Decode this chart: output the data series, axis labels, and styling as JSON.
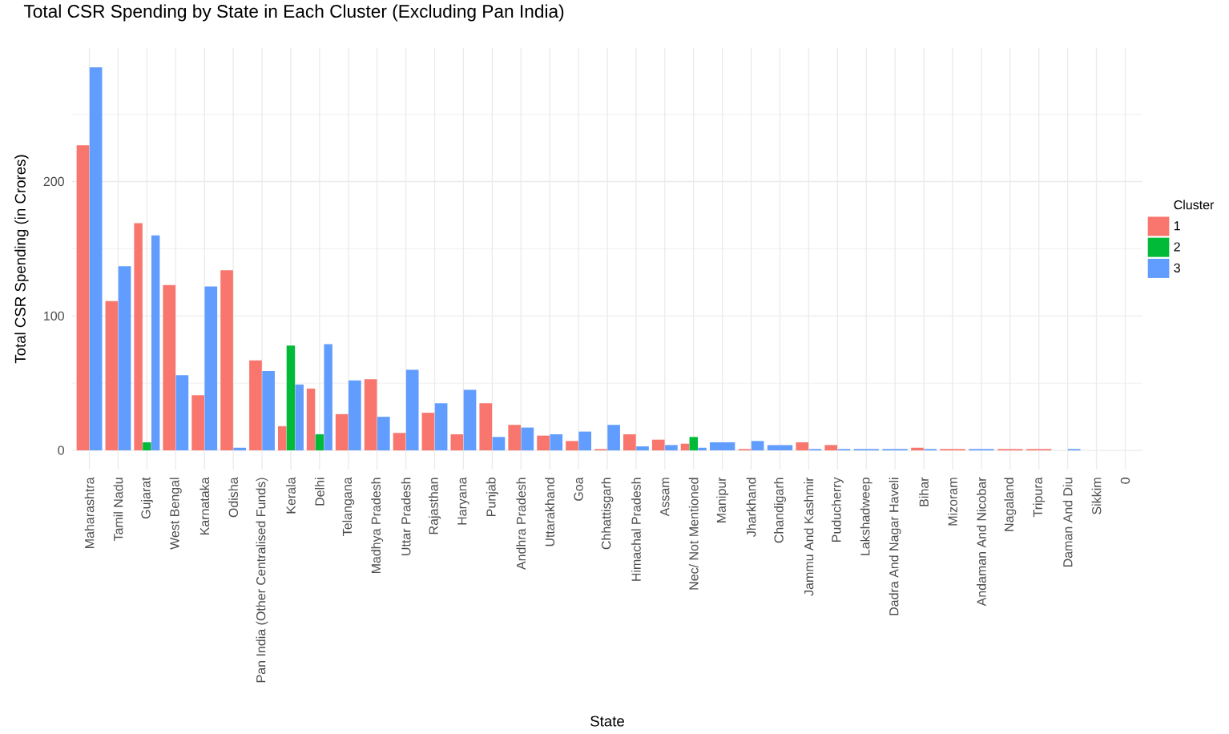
{
  "chart_data": {
    "type": "bar",
    "title": "Total CSR Spending by State in Each Cluster (Excluding Pan India)",
    "xlabel": "State",
    "ylabel": "Total CSR Spending (in Crores)",
    "legend_title": "Cluster",
    "categories": [
      "Maharashtra",
      "Tamil Nadu",
      "Gujarat",
      "West Bengal",
      "Karnataka",
      "Odisha",
      "Pan India (Other Centralised Funds)",
      "Kerala",
      "Delhi",
      "Telangana",
      "Madhya Pradesh",
      "Uttar Pradesh",
      "Rajasthan",
      "Haryana",
      "Punjab",
      "Andhra Pradesh",
      "Uttarakhand",
      "Goa",
      "Chhattisgarh",
      "Himachal Pradesh",
      "Assam",
      "Nec/ Not Mentioned",
      "Manipur",
      "Jharkhand",
      "Chandigarh",
      "Jammu And Kashmir",
      "Puducherry",
      "Lakshadweep",
      "Dadra And Nagar Haveli",
      "Bihar",
      "Mizoram",
      "Andaman And Nicobar",
      "Nagaland",
      "Tripura",
      "Daman And Diu",
      "Sikkim",
      "0"
    ],
    "series": [
      {
        "name": "1",
        "color": "#f8766d",
        "values": [
          227,
          111,
          169,
          123,
          41,
          134,
          67,
          18,
          46,
          27,
          53,
          13,
          28,
          12,
          35,
          19,
          11,
          7,
          1,
          12,
          8,
          5,
          null,
          1,
          null,
          6,
          4,
          null,
          null,
          2,
          1,
          null,
          1,
          1,
          0,
          null,
          null
        ]
      },
      {
        "name": "2",
        "color": "#00ba38",
        "values": [
          null,
          null,
          6,
          null,
          null,
          null,
          null,
          78,
          12,
          null,
          null,
          null,
          null,
          null,
          null,
          null,
          null,
          null,
          null,
          null,
          null,
          10,
          null,
          null,
          null,
          null,
          null,
          null,
          null,
          null,
          null,
          null,
          null,
          null,
          null,
          null,
          null
        ]
      },
      {
        "name": "3",
        "color": "#619cff",
        "values": [
          285,
          137,
          160,
          56,
          122,
          2,
          59,
          49,
          79,
          52,
          25,
          60,
          35,
          45,
          10,
          17,
          12,
          14,
          19,
          3,
          4,
          2,
          6,
          7,
          4,
          1,
          1,
          1,
          1,
          1,
          null,
          1,
          null,
          null,
          1,
          null,
          null
        ]
      }
    ],
    "ylim": [
      -14.25,
      299.25
    ],
    "yticks": [
      0,
      100,
      200,
      {
        "value": 50,
        "label": null
      },
      {
        "value": 150,
        "label": null
      },
      {
        "value": 250,
        "label": null
      }
    ],
    "grid": true,
    "legend": "right"
  }
}
